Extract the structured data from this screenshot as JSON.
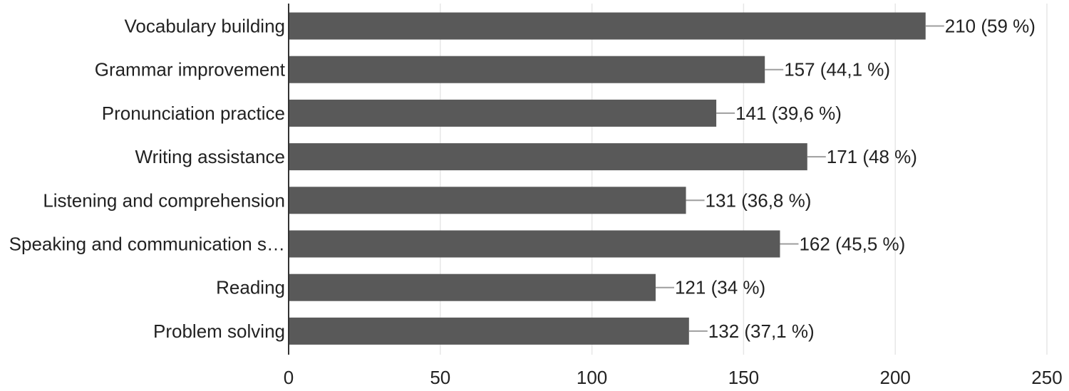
{
  "chart_data": {
    "type": "bar",
    "orientation": "horizontal",
    "categories": [
      "Vocabulary building",
      "Grammar improvement",
      "Pronunciation practice",
      "Writing assistance",
      "Listening and comprehension",
      "Speaking and communication s…",
      "Reading",
      "Problem solving"
    ],
    "values": [
      210,
      157,
      141,
      171,
      131,
      162,
      121,
      132
    ],
    "value_labels": [
      "210 (59 %)",
      "157 (44,1 %)",
      "141 (39,6 %)",
      "171 (48 %)",
      "131 (36,8 %)",
      "162 (45,5 %)",
      "121 (34 %)",
      "132 (37,1 %)"
    ],
    "xlim": [
      0,
      250
    ],
    "x_ticks": [
      "0",
      "50",
      "100",
      "150",
      "200",
      "250"
    ],
    "grid": true,
    "legend": "none",
    "title": "",
    "xlabel": "",
    "ylabel": "",
    "colors": {
      "bar": "#595959",
      "grid": "#e6e6e6",
      "axis": "#333333",
      "leader": "#9e9e9e",
      "text": "#222222"
    }
  }
}
